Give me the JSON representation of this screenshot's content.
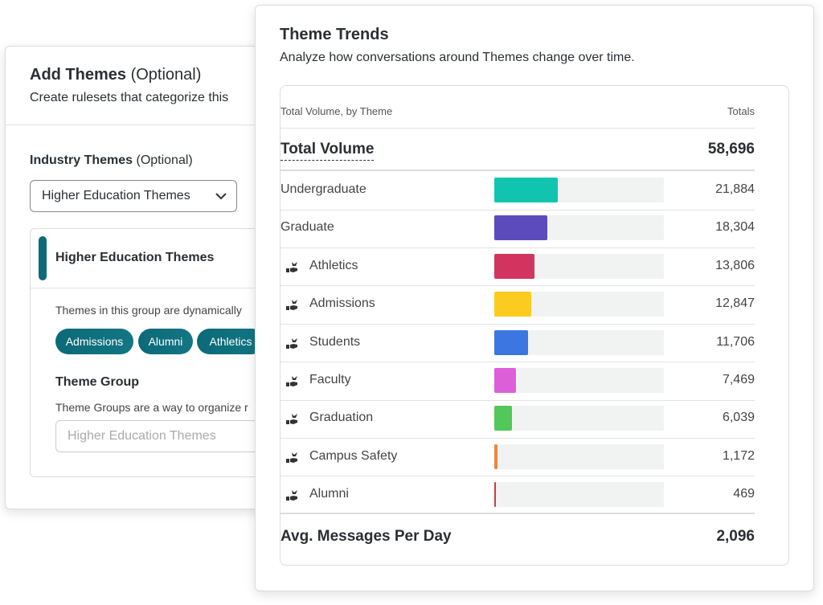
{
  "add_themes": {
    "title": "Add Themes",
    "title_suffix": "(Optional)",
    "description": "Create rulesets that categorize this",
    "industry_label": "Industry Themes",
    "industry_suffix": "(Optional)",
    "dropdown": "Higher Education Themes",
    "group": {
      "title": "Higher Education Themes",
      "description": "Themes in this group are dynamically",
      "chips": [
        "Admissions",
        "Alumni",
        "Athletics"
      ],
      "theme_group_label": "Theme Group",
      "theme_group_description": "Theme Groups are a way to organize r",
      "select_placeholder": "Higher Education Themes"
    }
  },
  "theme_trends": {
    "title": "Theme Trends",
    "subtitle": "Analyze how conversations around Themes change over time.",
    "header_label": "Total Volume, by Theme",
    "header_totals": "Totals",
    "total": {
      "label": "Total Volume",
      "value": 58696,
      "value_label": "58,696"
    },
    "rows": [
      {
        "name": "Undergraduate",
        "value": 21884,
        "value_label": "21,884",
        "color": "#11c4b0",
        "icon": false
      },
      {
        "name": "Graduate",
        "value": 18304,
        "value_label": "18,304",
        "color": "#5c4bbd",
        "icon": false
      },
      {
        "name": "Athletics",
        "value": 13806,
        "value_label": "13,806",
        "color": "#d2345f",
        "icon": true
      },
      {
        "name": "Admissions",
        "value": 12847,
        "value_label": "12,847",
        "color": "#fccb1f",
        "icon": true
      },
      {
        "name": "Students",
        "value": 11706,
        "value_label": "11,706",
        "color": "#3b76e1",
        "icon": true
      },
      {
        "name": "Faculty",
        "value": 7469,
        "value_label": "7,469",
        "color": "#dc5fd9",
        "icon": true
      },
      {
        "name": "Graduation",
        "value": 6039,
        "value_label": "6,039",
        "color": "#52c75a",
        "icon": true
      },
      {
        "name": "Campus Safety",
        "value": 1172,
        "value_label": "1,172",
        "color": "#f2843c",
        "icon": true
      },
      {
        "name": "Alumni",
        "value": 469,
        "value_label": "469",
        "color": "#d33a3a",
        "icon": true
      }
    ],
    "footer": {
      "label": "Avg. Messages Per Day",
      "value": 2096,
      "value_label": "2,096"
    }
  }
}
